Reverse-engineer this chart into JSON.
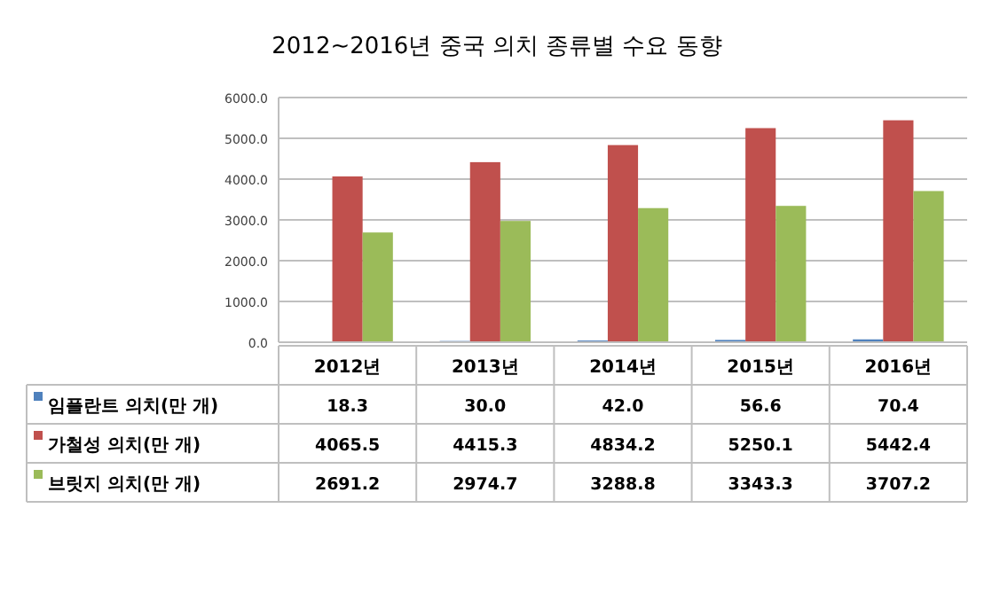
{
  "chart_data": {
    "type": "bar",
    "title": "2012~2016년 중국 의치 종류별 수요 동향",
    "categories": [
      "2012년",
      "2013년",
      "2014년",
      "2015년",
      "2016년"
    ],
    "series": [
      {
        "name": "임플란트 의치(만 개)",
        "color": "#4f81bd",
        "values": [
          18.3,
          30.0,
          42.0,
          56.6,
          70.4
        ],
        "value_labels": [
          "18.3",
          "30.0",
          "42.0",
          "56.6",
          "70.4"
        ]
      },
      {
        "name": "가철성  의치(만 개)",
        "color": "#c0504d",
        "values": [
          4065.5,
          4415.3,
          4834.2,
          5250.1,
          5442.4
        ],
        "value_labels": [
          "4065.5",
          "4415.3",
          "4834.2",
          "5250.1",
          "5442.4"
        ]
      },
      {
        "name": "브릿지 의치(만 개)",
        "color": "#9bbb59",
        "values": [
          2691.2,
          2974.7,
          3288.8,
          3343.3,
          3707.2
        ],
        "value_labels": [
          "2691.2",
          "2974.7",
          "3288.8",
          "3343.3",
          "3707.2"
        ]
      }
    ],
    "ylim": [
      0,
      6000
    ],
    "yticks": [
      {
        "value": 0,
        "label": "0.0"
      },
      {
        "value": 1000,
        "label": "1000.0"
      },
      {
        "value": 2000,
        "label": "2000.0"
      },
      {
        "value": 3000,
        "label": "3000.0"
      },
      {
        "value": 4000,
        "label": "4000.0"
      },
      {
        "value": 5000,
        "label": "5000.0"
      },
      {
        "value": 6000,
        "label": "6000.0"
      }
    ],
    "grid": "y",
    "legend": "bottom left"
  }
}
